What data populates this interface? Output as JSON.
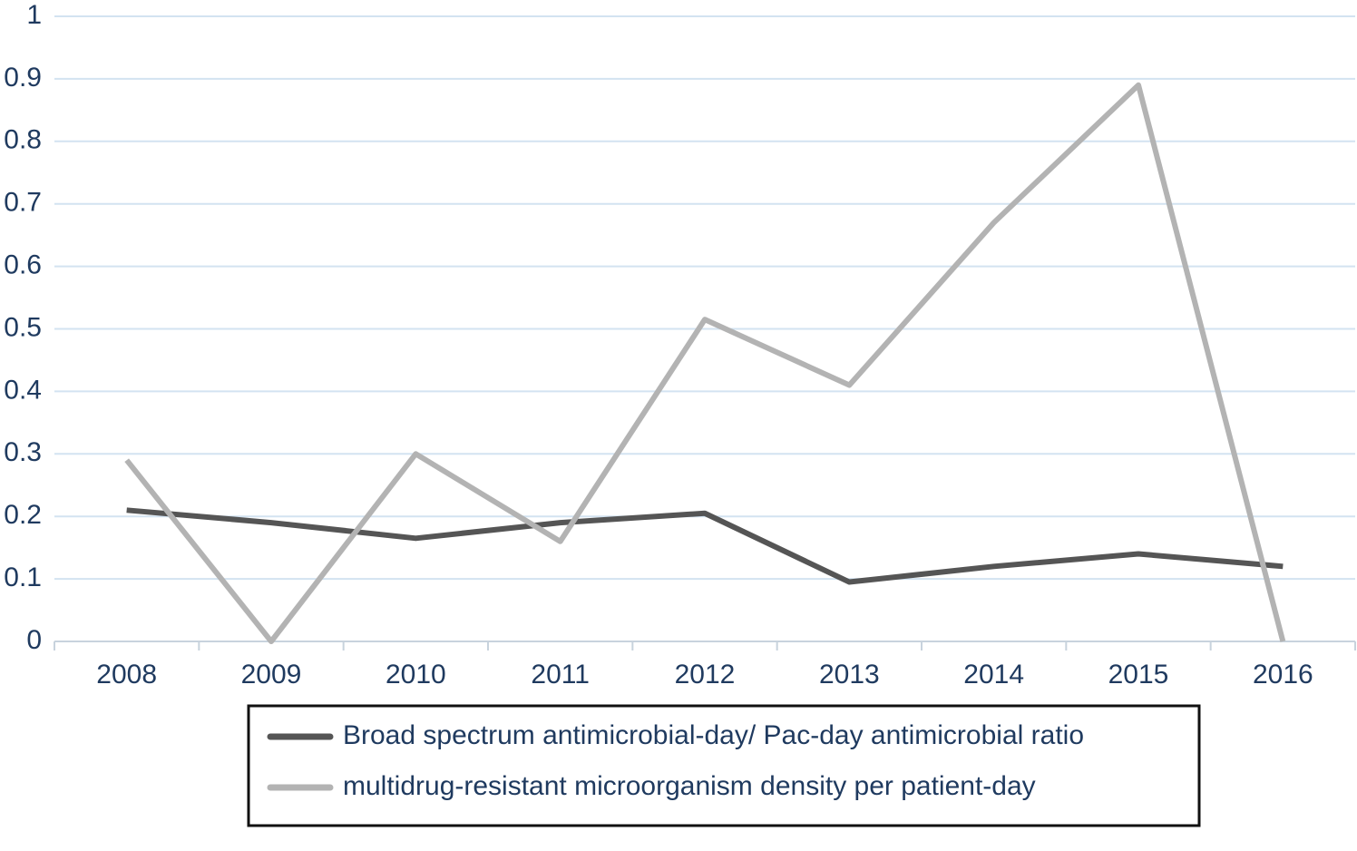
{
  "chart_data": {
    "type": "line",
    "categories": [
      "2008",
      "2009",
      "2010",
      "2011",
      "2012",
      "2013",
      "2014",
      "2015",
      "2016"
    ],
    "series": [
      {
        "name": "Broad spectrum antimicrobial-day/ Pac-day antimicrobial ratio",
        "color": "#555555",
        "values": [
          0.21,
          0.19,
          0.165,
          0.19,
          0.205,
          0.095,
          0.12,
          0.14,
          0.12
        ]
      },
      {
        "name": "multidrug-resistant microorganism density per patient-day",
        "color": "#b3b3b3",
        "values": [
          0.29,
          0,
          0.3,
          0.16,
          0.515,
          0.41,
          0.67,
          0.89,
          0
        ]
      }
    ],
    "ylim": [
      0,
      1
    ],
    "yticks": [
      0,
      0.1,
      0.2,
      0.3,
      0.4,
      0.5,
      0.6,
      0.7,
      0.8,
      0.9,
      1
    ],
    "grid": true,
    "legend": "bottom"
  }
}
